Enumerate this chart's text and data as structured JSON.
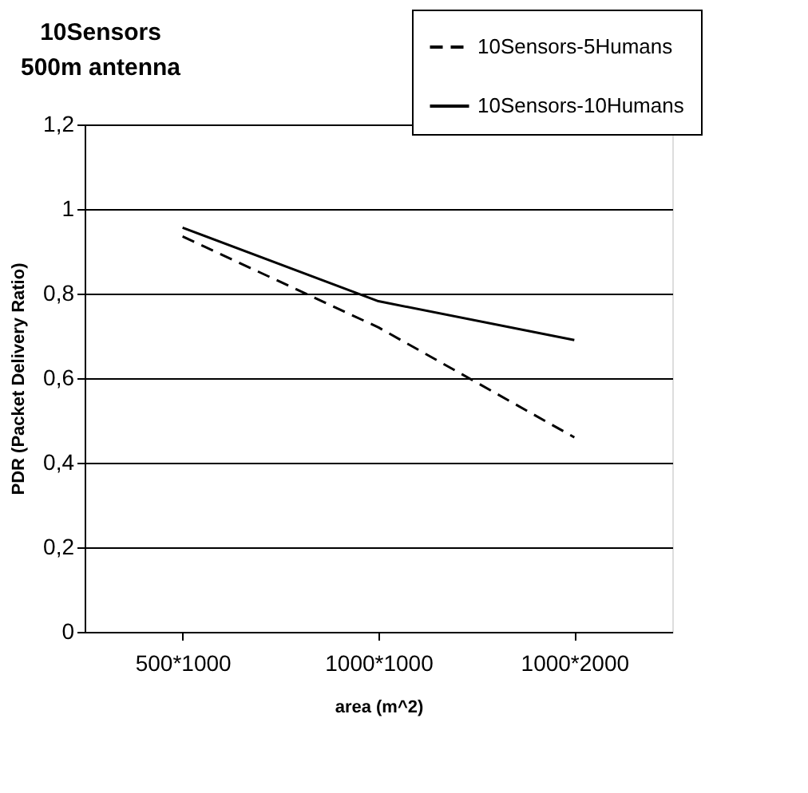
{
  "chart_data": {
    "type": "line",
    "title": [
      "10Sensors",
      "500m antenna"
    ],
    "xlabel": "area (m^2)",
    "ylabel": "PDR (Packet Delivery Ratio)",
    "categories": [
      "500*1000",
      "1000*1000",
      "1000*2000"
    ],
    "series": [
      {
        "name": "10Sensors-5Humans",
        "color": "#000000",
        "line_style": "dashed",
        "values": [
          0.935,
          0.72,
          0.46
        ]
      },
      {
        "name": "10Sensors-10Humans",
        "color": "#000000",
        "line_style": "solid",
        "values": [
          0.956,
          0.782,
          0.69
        ]
      }
    ],
    "ylim": [
      0,
      1.2
    ],
    "yticks": [
      {
        "value": 0,
        "label": "0"
      },
      {
        "value": 0.2,
        "label": "0,2"
      },
      {
        "value": 0.4,
        "label": "0,4"
      },
      {
        "value": 0.6,
        "label": "0,6"
      },
      {
        "value": 0.8,
        "label": "0,8"
      },
      {
        "value": 1,
        "label": "1"
      },
      {
        "value": 1.2,
        "label": "1,2"
      }
    ],
    "grid": "y",
    "legend": "top right",
    "marker": "none"
  }
}
